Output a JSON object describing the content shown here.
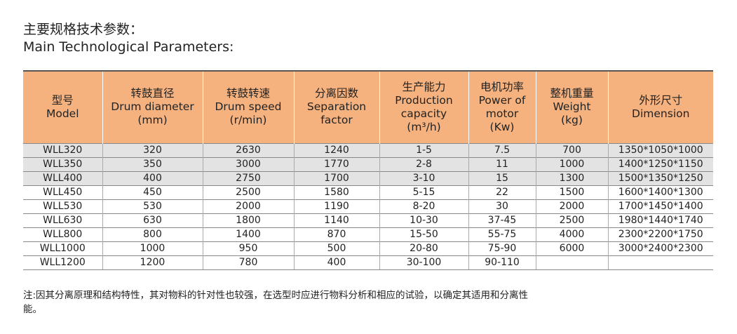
{
  "title": {
    "cn": "主要规格技术参数：",
    "en": "Main Technological Parameters:"
  },
  "table": {
    "headers": [
      {
        "cn": "型号",
        "en1": "Model",
        "en2": ""
      },
      {
        "cn": "转鼓直径",
        "en1": "Drum diameter",
        "en2": "(mm)"
      },
      {
        "cn": "转鼓转速",
        "en1": "Drum speed",
        "en2": "(r/min)"
      },
      {
        "cn": "分离因数",
        "en1": "Separation",
        "en2": "factor"
      },
      {
        "cn": "生产能力",
        "en1": "Production",
        "en2": "capacity",
        "en3": "(m³/h)"
      },
      {
        "cn": "电机功率",
        "en1": "Power of",
        "en2": "motor",
        "en3": "(Kw)"
      },
      {
        "cn": "整机重量",
        "en1": "Weight",
        "en2": "(kg)"
      },
      {
        "cn": "外形尺寸",
        "en1": "Dimension",
        "en2": ""
      }
    ],
    "rows": [
      [
        "WLL320",
        "320",
        "2630",
        "1240",
        "1-5",
        "7.5",
        "700",
        "1350*1050*1000"
      ],
      [
        "WLL350",
        "350",
        "3000",
        "1770",
        "2-8",
        "11",
        "1000",
        "1400*1250*1150"
      ],
      [
        "WLL400",
        "400",
        "2750",
        "1700",
        "3-10",
        "15",
        "1300",
        "1500*1350*1250"
      ],
      [
        "WLL450",
        "450",
        "2500",
        "1580",
        "5-15",
        "22",
        "1500",
        "1600*1400*1300"
      ],
      [
        "WLL530",
        "530",
        "2000",
        "1190",
        "8-20",
        "30",
        "2000",
        "1700*1450*1400"
      ],
      [
        "WLL630",
        "630",
        "1800",
        "1140",
        "10-30",
        "37-45",
        "2500",
        "1980*1440*1740"
      ],
      [
        "WLL800",
        "800",
        "1400",
        "870",
        "15-50",
        "55-75",
        "4000",
        "2300*2200*1750"
      ],
      [
        "WLL1000",
        "1000",
        "950",
        "500",
        "20-80",
        "75-90",
        "6000",
        "3000*2400*2300"
      ],
      [
        "WLL1200",
        "1200",
        "780",
        "400",
        "30-100",
        "90-110",
        "",
        ""
      ]
    ]
  },
  "note": "注:因其分离原理和结构特性，其对物料的针对性也较强，在选型时应进行物料分析和相应的试验，以确定其适用和分离性能。",
  "colors": {
    "header_bg": "#f5b27f",
    "shaded_row": "#e3e3e3"
  }
}
